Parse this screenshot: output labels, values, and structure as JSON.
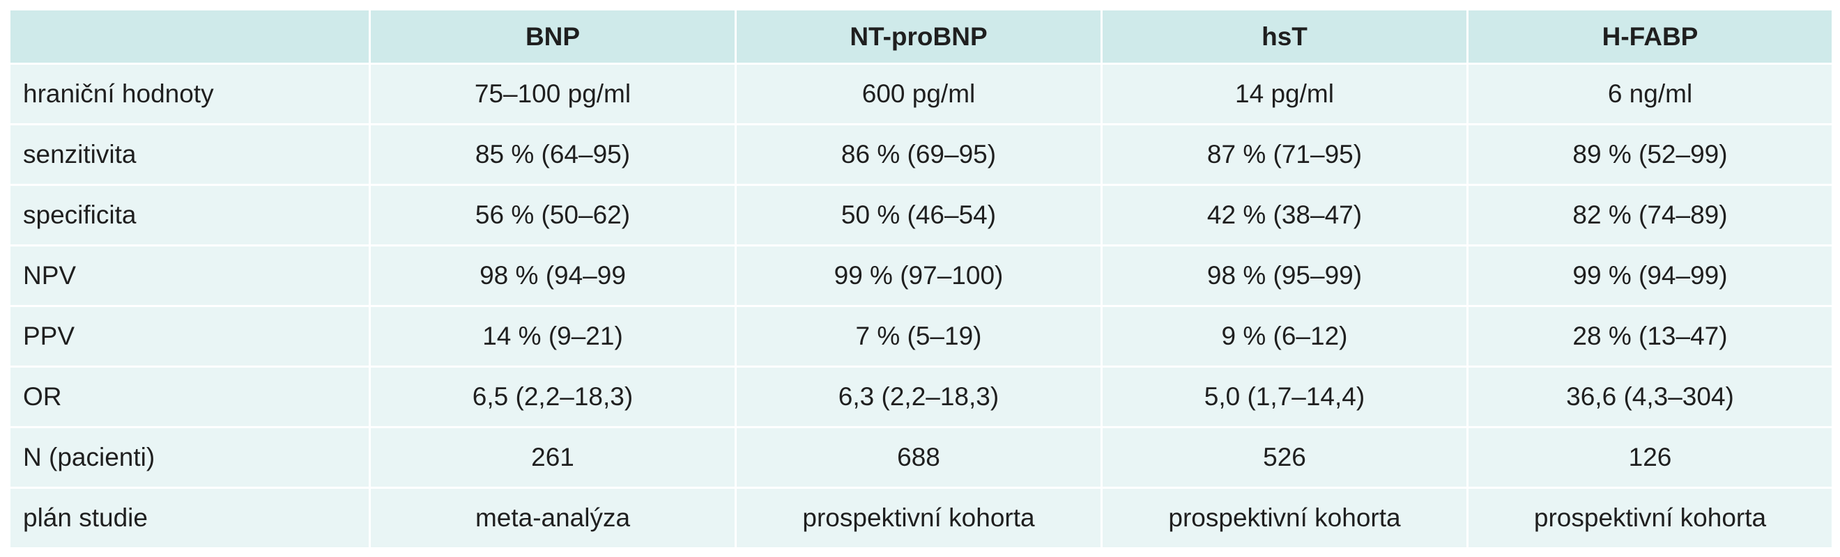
{
  "table": {
    "columns": [
      "",
      "BNP",
      "NT-proBNP",
      "hsT",
      "H-FABP"
    ],
    "rows": [
      {
        "label": "hraniční hodnoty",
        "values": [
          "75–100 pg/ml",
          "600 pg/ml",
          "14 pg/ml",
          "6 ng/ml"
        ]
      },
      {
        "label": "senzitivita",
        "values": [
          "85 % (64–95)",
          "86 % (69–95)",
          "87 % (71–95)",
          "89 % (52–99)"
        ]
      },
      {
        "label": "specificita",
        "values": [
          "56 % (50–62)",
          "50 % (46–54)",
          "42 % (38–47)",
          "82 % (74–89)"
        ]
      },
      {
        "label": "NPV",
        "values": [
          "98 % (94–99",
          "99 % (97–100)",
          "98 % (95–99)",
          "99 % (94–99)"
        ]
      },
      {
        "label": "PPV",
        "values": [
          "14 % (9–21)",
          "7 % (5–19)",
          "9 % (6–12)",
          "28 % (13–47)"
        ]
      },
      {
        "label": "OR",
        "values": [
          "6,5 (2,2–18,3)",
          "6,3 (2,2–18,3)",
          "5,0 (1,7–14,4)",
          "36,6 (4,3–304)"
        ]
      },
      {
        "label": "N (pacienti)",
        "values": [
          "261",
          "688",
          "526",
          "126"
        ]
      },
      {
        "label": "plán studie",
        "values": [
          "meta-analýza",
          "prospektivní kohorta",
          "prospektivní kohorta",
          "prospektivní kohorta"
        ]
      }
    ]
  }
}
